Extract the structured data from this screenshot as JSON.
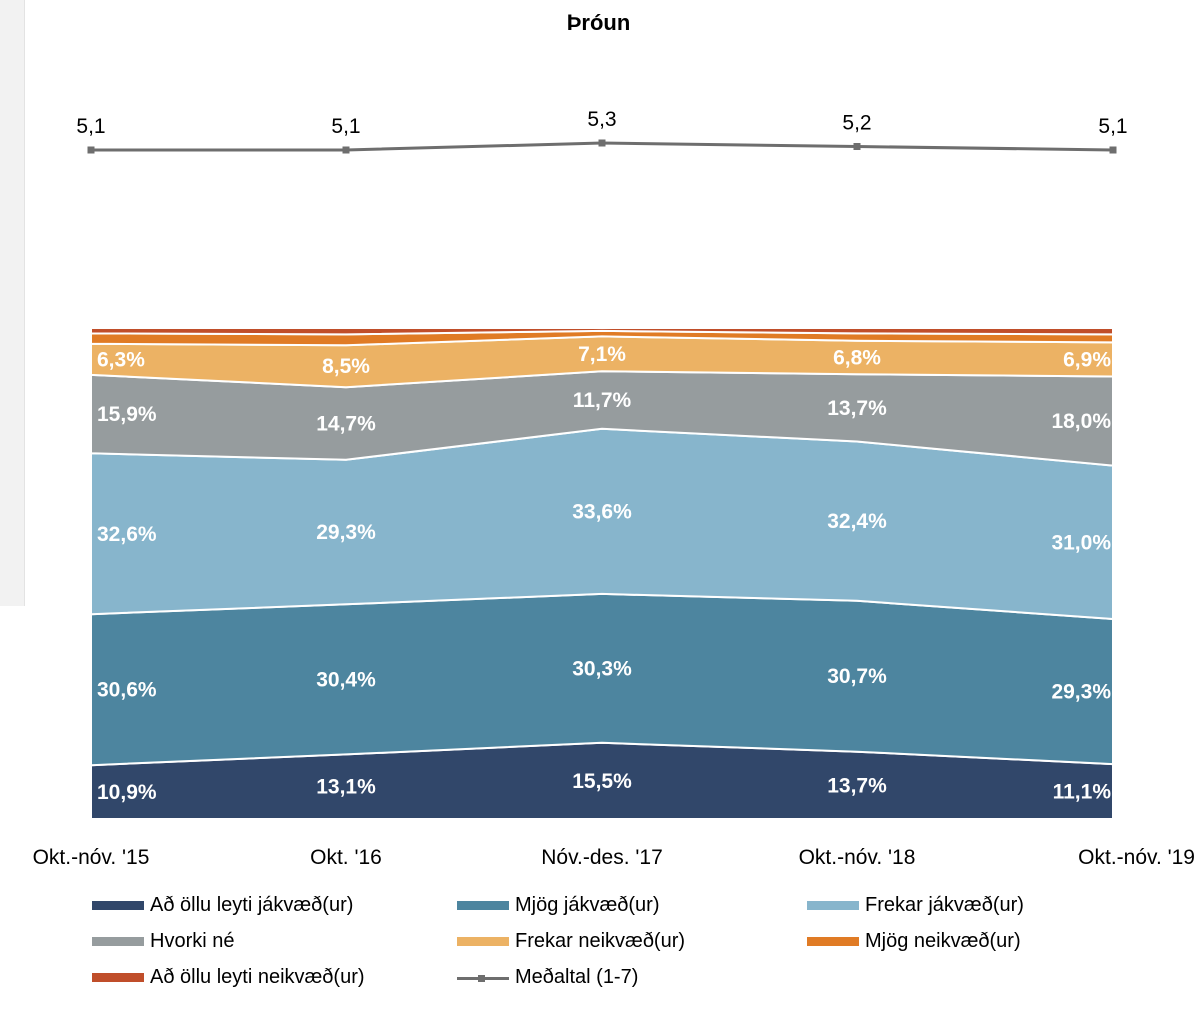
{
  "chart_data": {
    "type": "area",
    "title": "Þróun",
    "categories": [
      "Okt.-nóv. '15",
      "Okt. '16",
      "Nóv.-des. '17",
      "Okt.-nóv. '18",
      "Okt.-nóv. '19"
    ],
    "stacked": true,
    "series": [
      {
        "name": "Að öllu leyti jákvæð(ur)",
        "color": "#31476a",
        "values": [
          10.9,
          13.1,
          15.5,
          13.7,
          11.1
        ],
        "labels": [
          "10,9%",
          "13,1%",
          "15,5%",
          "13,7%",
          "11,1%"
        ]
      },
      {
        "name": "Mjög jákvæð(ur)",
        "color": "#4d859f",
        "values": [
          30.6,
          30.4,
          30.3,
          30.7,
          29.3
        ],
        "labels": [
          "30,6%",
          "30,4%",
          "30,3%",
          "30,7%",
          "29,3%"
        ]
      },
      {
        "name": "Frekar jákvæð(ur)",
        "color": "#87b5cc",
        "values": [
          32.6,
          29.3,
          33.6,
          32.4,
          31.0
        ],
        "labels": [
          "32,6%",
          "29,3%",
          "33,6%",
          "32,4%",
          "31,0%"
        ]
      },
      {
        "name": "Hvorki né",
        "color": "#969c9e",
        "values": [
          15.9,
          14.7,
          11.7,
          13.7,
          18.0
        ],
        "labels": [
          "15,9%",
          "14,7%",
          "11,7%",
          "13,7%",
          "18,0%"
        ]
      },
      {
        "name": "Frekar neikvæð(ur)",
        "color": "#ecb264",
        "values": [
          6.3,
          8.5,
          7.1,
          6.8,
          6.9
        ],
        "labels": [
          "6,3%",
          "8,5%",
          "7,1%",
          "6,8%",
          "6,9%"
        ]
      },
      {
        "name": "Mjög neikvæð(ur)",
        "color": "#e07b25",
        "values": [
          2.1,
          2.2,
          1.1,
          1.5,
          1.6
        ],
        "labels": []
      },
      {
        "name": "Að öllu leyti neikvæð(ur)",
        "color": "#c04e2a",
        "values": [
          1.1,
          1.3,
          0.6,
          1.1,
          1.3
        ],
        "labels": []
      }
    ],
    "line": {
      "name": "Meðaltal (1-7)",
      "color": "#6e6e6e",
      "values": [
        5.1,
        5.1,
        5.3,
        5.2,
        5.1
      ],
      "labels": [
        "5,1",
        "5,1",
        "5,3",
        "5,2",
        "5,1"
      ]
    },
    "legend_position": "bottom",
    "grid": false
  }
}
